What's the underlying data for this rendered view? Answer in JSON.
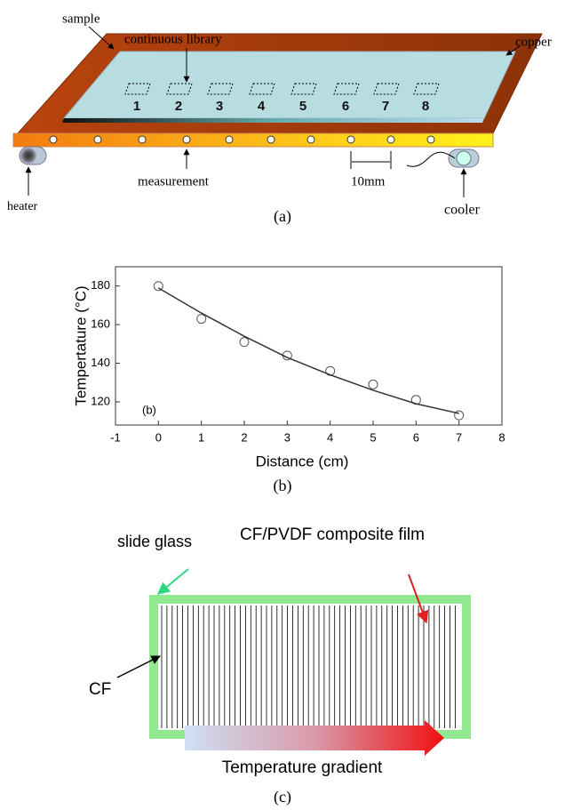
{
  "panel_a": {
    "labels": {
      "sample": "sample",
      "library": "continuous library",
      "copper": "copper",
      "measurement": "measurement",
      "spacing": "10mm",
      "heater": "heater",
      "cooler": "cooler"
    },
    "cells": [
      "1",
      "2",
      "3",
      "4",
      "5",
      "6",
      "7",
      "8"
    ],
    "caption": "(a)"
  },
  "chart_data": {
    "type": "scatter",
    "x": [
      0,
      1,
      2,
      3,
      4,
      5,
      6,
      7
    ],
    "series": [
      {
        "type": "scatter",
        "color": "#555555",
        "values": [
          180,
          163,
          151,
          144,
          136,
          129,
          121,
          113
        ]
      },
      {
        "type": "line",
        "color": "#333333",
        "values": [
          179,
          166,
          154,
          143,
          134,
          126,
          119,
          114
        ]
      }
    ],
    "xlim": [
      -1,
      8
    ],
    "xticks": [
      -1,
      0,
      1,
      2,
      3,
      4,
      5,
      6,
      7,
      8
    ],
    "ylim": [
      108,
      190
    ],
    "yticks": [
      120,
      140,
      160,
      180
    ],
    "xlabel": "Distance (cm)",
    "ylabel": "Tempertature (°C)",
    "panel_label": "(b)",
    "caption": "(b)"
  },
  "panel_c": {
    "labels": {
      "glass": "slide glass",
      "film": "CF/PVDF composite film",
      "cf": "CF",
      "gradient": "Temperature gradient"
    },
    "caption": "(c)"
  }
}
